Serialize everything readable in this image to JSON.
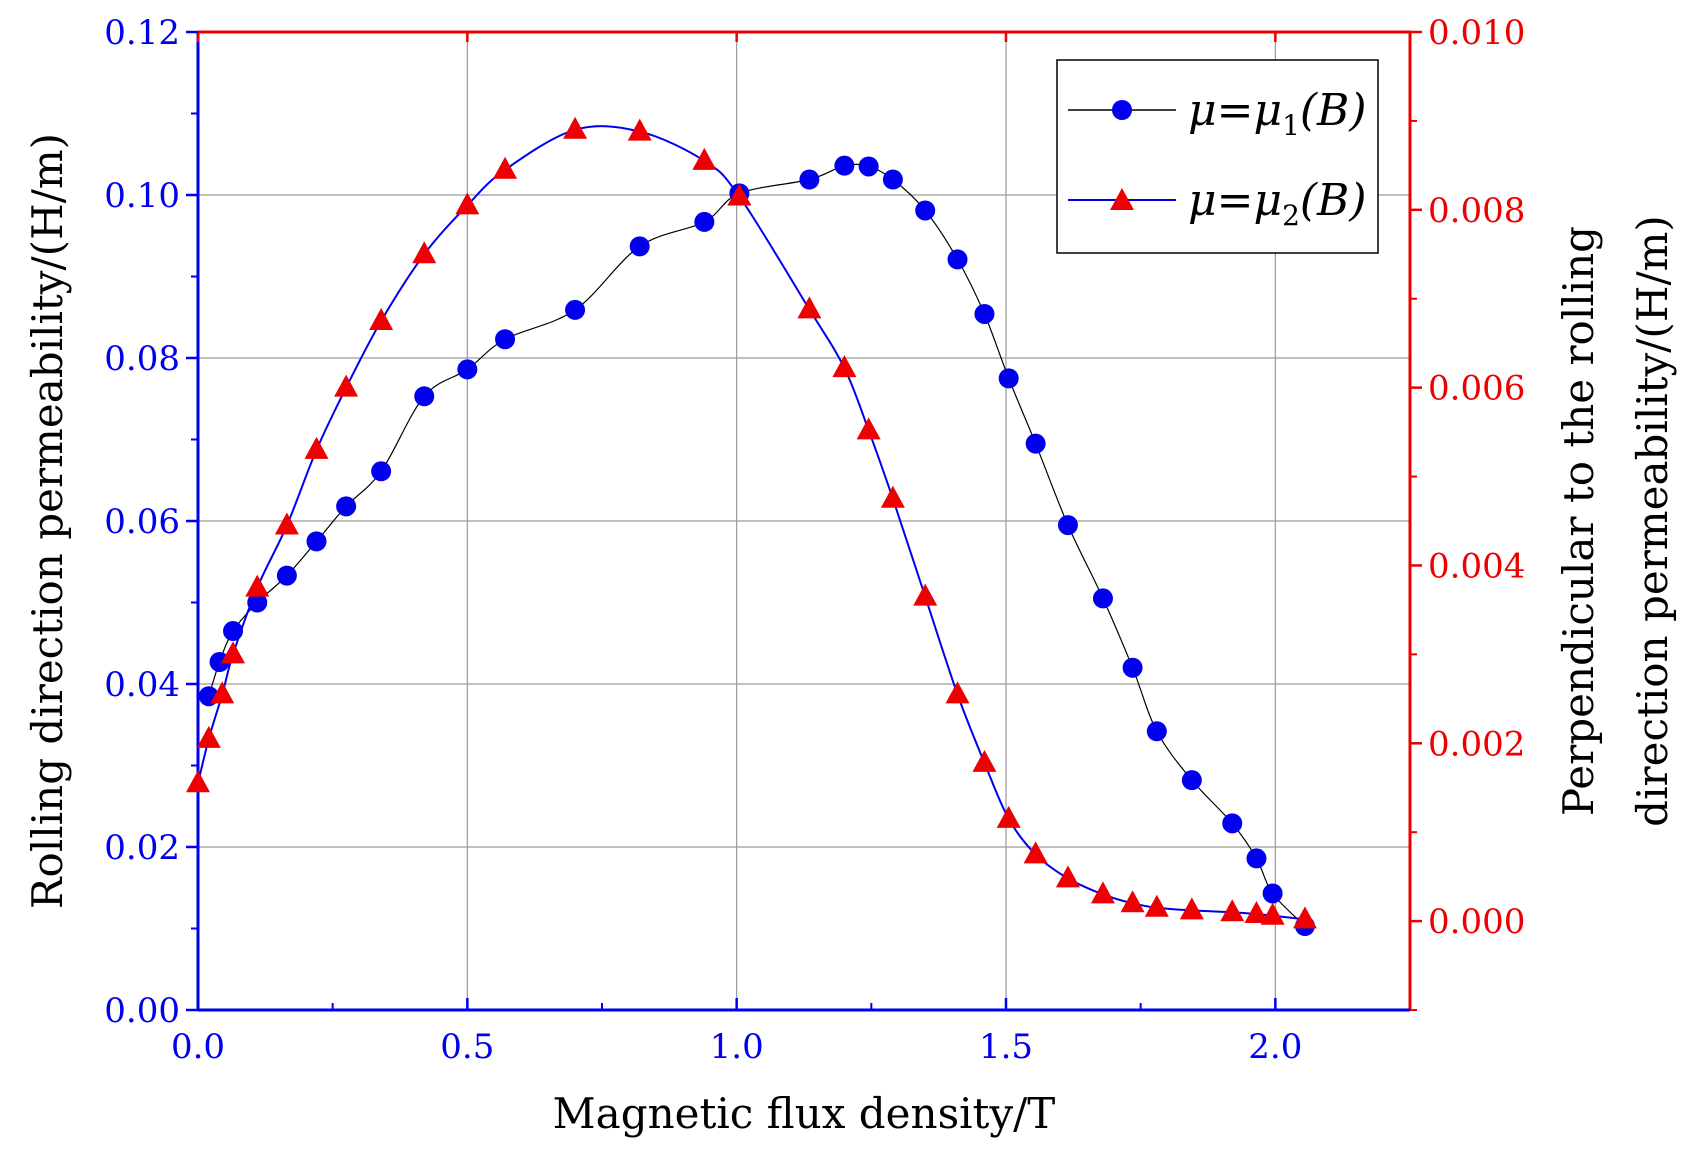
{
  "chart_data": {
    "type": "line",
    "title": "",
    "xlabel": "Magnetic flux density/T",
    "ylabel_left": "Rolling direction permeability/(H/m)",
    "ylabel_right_line1": "Perpendicular to the rolling",
    "ylabel_right_line2": "direction permeability/(H/m)",
    "xlim": [
      0,
      2.25
    ],
    "ylim_left": [
      0,
      0.12
    ],
    "ylim_right": [
      -0.001,
      0.01
    ],
    "x_ticks": [
      0.0,
      0.5,
      1.0,
      1.5,
      2.0
    ],
    "x_tick_labels": [
      "0.0",
      "0.5",
      "1.0",
      "1.5",
      "2.0"
    ],
    "y_left_ticks": [
      0.0,
      0.02,
      0.04,
      0.06,
      0.08,
      0.1,
      0.12
    ],
    "y_left_tick_labels": [
      "0.00",
      "0.02",
      "0.04",
      "0.06",
      "0.08",
      "0.10",
      "0.12"
    ],
    "y_right_ticks": [
      0.0,
      0.002,
      0.004,
      0.006,
      0.008,
      0.01
    ],
    "y_right_tick_labels": [
      "0.000",
      "0.002",
      "0.004",
      "0.006",
      "0.008",
      "0.010"
    ],
    "grid": true,
    "legend_position": "top-right",
    "colors": {
      "left_axis": "#0000ee",
      "right_axis": "#ee0000",
      "series1_marker": "#0000ee",
      "series1_line": "#000000",
      "series2_marker": "#ee0000",
      "series2_line": "#0000ee",
      "grid": "#9a9a9a"
    },
    "series": [
      {
        "name": "μ=μ1(B)",
        "legend_base": "μ=μ",
        "legend_sub": "1",
        "legend_suffix": "(B)",
        "axis": "left",
        "marker": "circle",
        "x": [
          0.02,
          0.04,
          0.065,
          0.11,
          0.165,
          0.22,
          0.275,
          0.34,
          0.42,
          0.5,
          0.57,
          0.7,
          0.82,
          0.94,
          1.005,
          1.135,
          1.2,
          1.245,
          1.29,
          1.35,
          1.41,
          1.46,
          1.505,
          1.555,
          1.615,
          1.68,
          1.735,
          1.78,
          1.845,
          1.92,
          1.965,
          1.995,
          2.055
        ],
        "values": [
          0.0385,
          0.0427,
          0.0465,
          0.05,
          0.0533,
          0.0575,
          0.0618,
          0.0661,
          0.0753,
          0.0786,
          0.0823,
          0.0859,
          0.0937,
          0.0967,
          0.1002,
          0.1019,
          0.1036,
          0.1035,
          0.1019,
          0.0981,
          0.0921,
          0.0854,
          0.0775,
          0.0695,
          0.0595,
          0.0505,
          0.042,
          0.0342,
          0.0282,
          0.0229,
          0.0186,
          0.0143,
          0.0103
        ]
      },
      {
        "name": "μ=μ2(B)",
        "legend_base": "μ=μ",
        "legend_sub": "2",
        "legend_suffix": "(B)",
        "axis": "right",
        "marker": "triangle",
        "x": [
          0.0,
          0.02,
          0.045,
          0.065,
          0.11,
          0.165,
          0.22,
          0.275,
          0.34,
          0.42,
          0.5,
          0.57,
          0.7,
          0.82,
          0.94,
          1.005,
          1.135,
          1.2,
          1.245,
          1.29,
          1.35,
          1.41,
          1.46,
          1.505,
          1.555,
          1.615,
          1.68,
          1.735,
          1.78,
          1.845,
          1.92,
          1.965,
          1.995,
          2.055
        ],
        "values": [
          0.00155,
          0.00205,
          0.00255,
          0.003,
          0.00375,
          0.00445,
          0.0053,
          0.006,
          0.00675,
          0.0075,
          0.00805,
          0.00845,
          0.0089,
          0.00888,
          0.00855,
          0.00815,
          0.00688,
          0.00622,
          0.00552,
          0.00475,
          0.00365,
          0.00255,
          0.00178,
          0.00115,
          0.00075,
          0.00048,
          0.0003,
          0.0002,
          0.00015,
          0.00012,
          0.0001,
          8e-05,
          6e-05,
          2e-05
        ]
      }
    ]
  }
}
